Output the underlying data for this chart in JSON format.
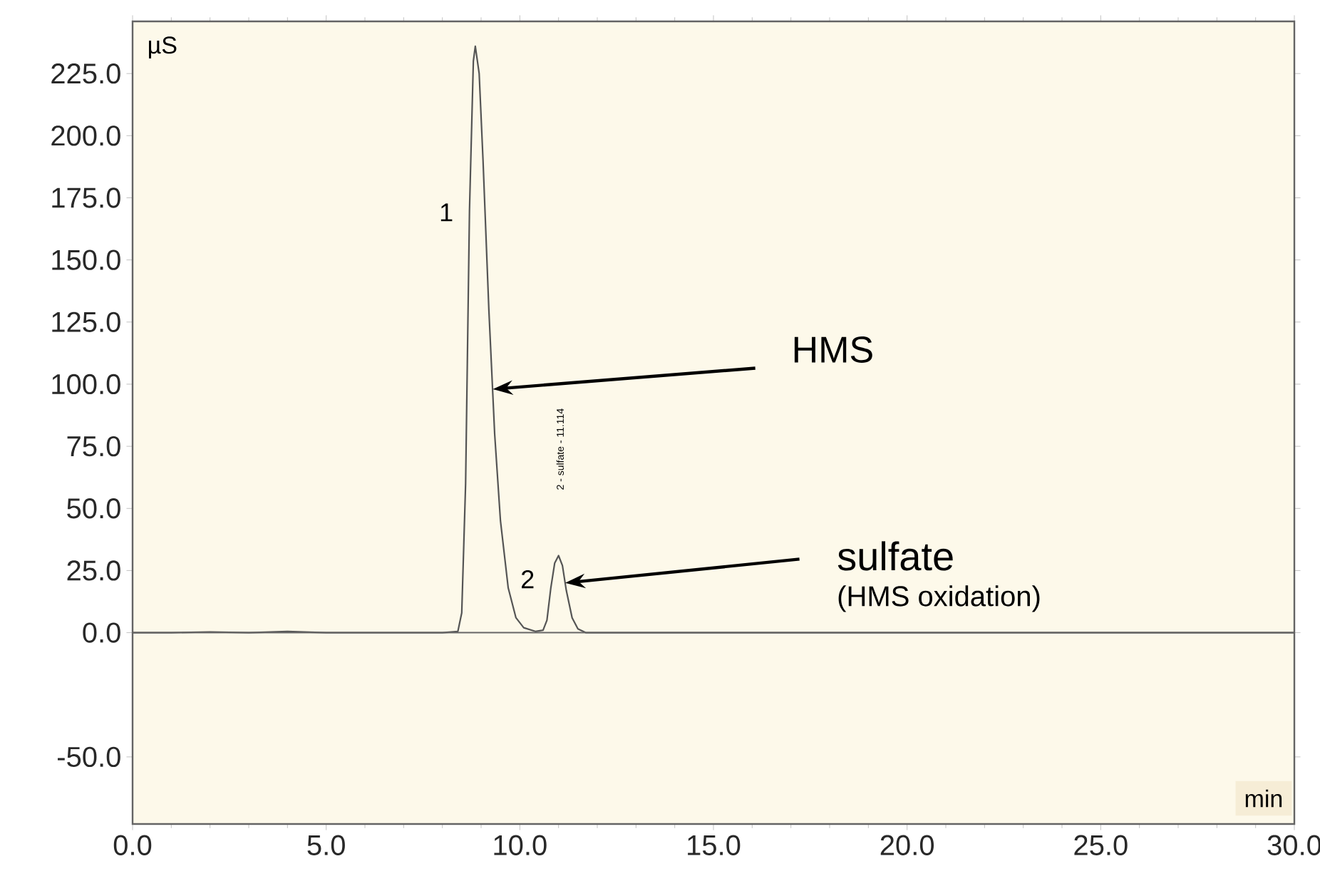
{
  "chart_data": {
    "type": "line",
    "xlabel": "min",
    "ylabel": "µS",
    "x": [
      0,
      1,
      2,
      3,
      4,
      5,
      6,
      7,
      8,
      8.4,
      8.5,
      8.6,
      8.7,
      8.8,
      8.85,
      8.95,
      9.05,
      9.2,
      9.35,
      9.5,
      9.7,
      9.9,
      10.1,
      10.4,
      10.6,
      10.7,
      10.8,
      10.9,
      11.0,
      11.1,
      11.2,
      11.35,
      11.5,
      11.7,
      15,
      20,
      25,
      30
    ],
    "series": [
      {
        "color": "#555555",
        "values": [
          0,
          0,
          0.3,
          0,
          0.5,
          0,
          0,
          0,
          0,
          0.5,
          8,
          60,
          170,
          230,
          236,
          225,
          190,
          130,
          80,
          45,
          18,
          6,
          2,
          0.5,
          1,
          5,
          18,
          28,
          31,
          27,
          17,
          6,
          1.5,
          0,
          0,
          0,
          0,
          0
        ]
      }
    ],
    "xlim": [
      0,
      30
    ],
    "ylim": [
      -77,
      246
    ],
    "xticks": [
      {
        "value": 0,
        "label": "0.0"
      },
      {
        "value": 5,
        "label": "5.0"
      },
      {
        "value": 10,
        "label": "10.0"
      },
      {
        "value": 15,
        "label": "15.0"
      },
      {
        "value": 20,
        "label": "20.0"
      },
      {
        "value": 25,
        "label": "25.0"
      },
      {
        "value": 30,
        "label": "30.0"
      }
    ],
    "yticks": [
      {
        "value": -50,
        "label": "-50.0"
      },
      {
        "value": 0,
        "label": "0.0"
      },
      {
        "value": 25,
        "label": "25.0"
      },
      {
        "value": 50,
        "label": "50.0"
      },
      {
        "value": 75,
        "label": "75.0"
      },
      {
        "value": 100,
        "label": "100.0"
      },
      {
        "value": 125,
        "label": "125.0"
      },
      {
        "value": 150,
        "label": "150.0"
      },
      {
        "value": 175,
        "label": "175.0"
      },
      {
        "value": 200,
        "label": "200.0"
      },
      {
        "value": 225,
        "label": "225.0"
      }
    ],
    "ref_lines": [
      {
        "axis": "y",
        "value": 0,
        "color": "#666666"
      }
    ],
    "annotations": [
      {
        "text": "HMS",
        "x": 9.3,
        "y": 98
      },
      {
        "text": "sulfate",
        "x": 11.17,
        "y": 20
      },
      "(HMS oxidation)",
      "1",
      "2",
      "2 - sulfate - 11.114"
    ],
    "grid": false,
    "marker": "none",
    "line_style": "solid"
  }
}
